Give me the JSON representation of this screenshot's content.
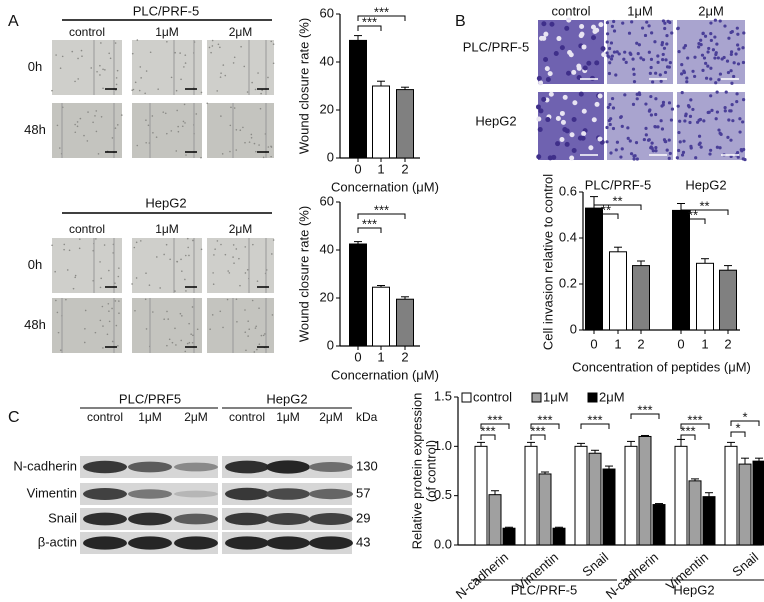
{
  "figure": {
    "panels": [
      "A",
      "B",
      "C"
    ],
    "a_blocks": [
      {
        "cell_line": "PLC/PRF-5",
        "columns": [
          "control",
          "1μM",
          "2μM"
        ],
        "rows": [
          "0h",
          "48h"
        ]
      },
      {
        "cell_line": "HepG2",
        "columns": [
          "control",
          "1μM",
          "2μM"
        ],
        "rows": [
          "0h",
          "48h"
        ]
      }
    ],
    "b_images": {
      "columns": [
        "control",
        "1μM",
        "2μM"
      ],
      "rows": [
        "PLC/PRF-5",
        "HepG2"
      ]
    },
    "c_blot": {
      "groups": [
        "PLC/PRF5",
        "HepG2"
      ],
      "columns": [
        "control",
        "1μM",
        "2μM",
        "control",
        "1μM",
        "2μM"
      ],
      "unit": "kDa",
      "rows": [
        {
          "name": "N-cadherin",
          "kda": 130
        },
        {
          "name": "Vimentin",
          "kda": 57
        },
        {
          "name": "Snail",
          "kda": 29
        },
        {
          "name": "β-actin",
          "kda": 43
        }
      ]
    }
  },
  "chart_data": [
    {
      "type": "bar",
      "ylabel": "Wound closure rate (%)",
      "xlabel": "Concernation (μM)",
      "categories": [
        "0",
        "1",
        "2"
      ],
      "values": [
        49,
        30,
        28.5
      ],
      "errors": [
        2,
        2,
        1
      ],
      "colors": [
        "#000000",
        "#ffffff",
        "#808080"
      ],
      "ylim": [
        0,
        60
      ],
      "yticks": [
        0,
        20,
        40,
        60
      ],
      "annotations": [
        "***",
        "***"
      ]
    },
    {
      "type": "bar",
      "ylabel": "Wound closure rate (%)",
      "xlabel": "Concernation (μM)",
      "categories": [
        "0",
        "1",
        "2"
      ],
      "values": [
        42.5,
        24.5,
        19.5
      ],
      "errors": [
        1,
        0.7,
        1
      ],
      "colors": [
        "#000000",
        "#ffffff",
        "#808080"
      ],
      "ylim": [
        0,
        60
      ],
      "yticks": [
        0,
        20,
        40,
        60
      ],
      "annotations": [
        "***",
        "***"
      ]
    },
    {
      "type": "bar",
      "ylabel": "Cell invasion relative to control",
      "xlabel": "Concentration of peptides (μM)",
      "groups": [
        "PLC/PRF-5",
        "HepG2"
      ],
      "categories": [
        "0",
        "1",
        "2",
        "0",
        "1",
        "2"
      ],
      "values": [
        0.53,
        0.34,
        0.28,
        0.52,
        0.29,
        0.26
      ],
      "errors": [
        0.05,
        0.02,
        0.02,
        0.03,
        0.02,
        0.02
      ],
      "colors": [
        "#000000",
        "#ffffff",
        "#808080",
        "#000000",
        "#ffffff",
        "#808080"
      ],
      "ylim": [
        0,
        0.6
      ],
      "yticks": [
        0,
        0.2,
        0.4,
        0.6
      ],
      "annotations": [
        "**",
        "**",
        "**",
        "**"
      ]
    },
    {
      "type": "grouped_bar",
      "ylabel": [
        "Relative protein expression",
        "(of control)"
      ],
      "categories": [
        "N-cadherin",
        "Vimentin",
        "Snail",
        "N-cadherin",
        "Vimentin",
        "Snail"
      ],
      "groups": [
        "PLC/PRF-5",
        "HepG2"
      ],
      "series": [
        {
          "name": "control",
          "color": "#ffffff",
          "values": [
            1.0,
            1.0,
            1.0,
            1.0,
            1.0,
            1.0
          ],
          "errors": [
            0.04,
            0.04,
            0.03,
            0.05,
            0.07,
            0.04
          ]
        },
        {
          "name": "1μM",
          "color": "#a0a0a0",
          "values": [
            0.51,
            0.72,
            0.93,
            1.1,
            0.65,
            0.82
          ],
          "errors": [
            0.04,
            0.02,
            0.03,
            0.01,
            0.02,
            0.06
          ]
        },
        {
          "name": "2μM",
          "color": "#000000",
          "values": [
            0.17,
            0.17,
            0.77,
            0.41,
            0.49,
            0.85
          ],
          "errors": [
            0.01,
            0.01,
            0.03,
            0.01,
            0.04,
            0.03
          ]
        }
      ],
      "ylim": [
        0,
        1.5
      ],
      "yticks": [
        {
          "value": 0,
          "label": "0.0"
        },
        0.5,
        {
          "value": 1,
          "label": "1.0"
        },
        1.5
      ],
      "annotations": [
        "***",
        "***",
        "***",
        "***",
        "***",
        "***",
        "***",
        "***",
        "*",
        "*"
      ]
    }
  ]
}
